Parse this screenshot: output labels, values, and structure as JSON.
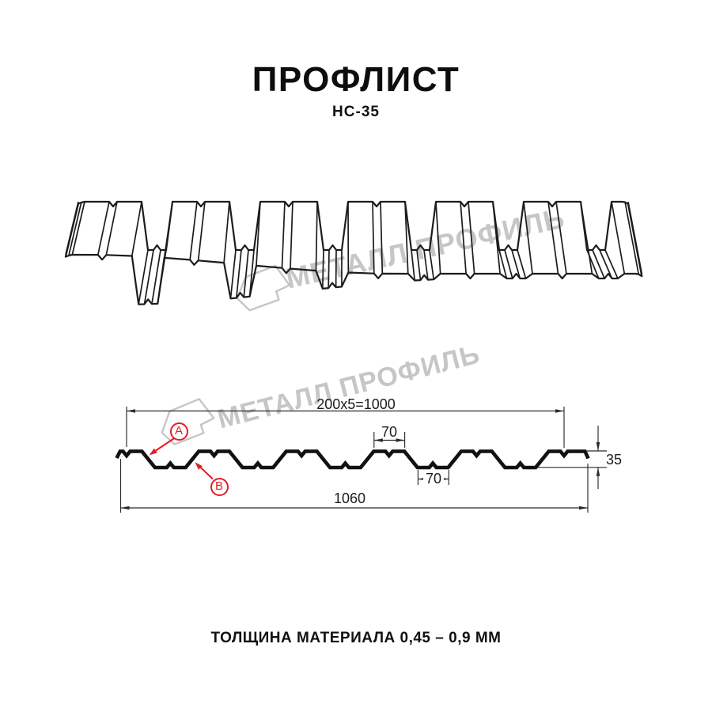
{
  "header": {
    "title": "ПРОФЛИСТ",
    "subtitle": "НС-35"
  },
  "watermark": {
    "text": "МЕТАЛЛ ПРОФИЛЬ"
  },
  "diagram": {
    "dim_top": "200x5=1000",
    "dim_rib_top": "70",
    "dim_rib_bottom": "70",
    "dim_height": "35",
    "dim_total": "1060",
    "label_a": "A",
    "label_b": "B",
    "profile_height_mm": 35,
    "pitch_mm": 200,
    "useful_width_mm": 1000,
    "full_width_mm": 1060
  },
  "footer": {
    "note": "ТОЛЩИНА МАТЕРИАЛА 0,45 – 0,9 ММ"
  },
  "colors": {
    "line": "#1c1c1c",
    "profile": "#111111",
    "dimension": "#2b2b2b",
    "red": "#e31e24",
    "watermark": "#c6c6c6",
    "background": "#ffffff"
  }
}
